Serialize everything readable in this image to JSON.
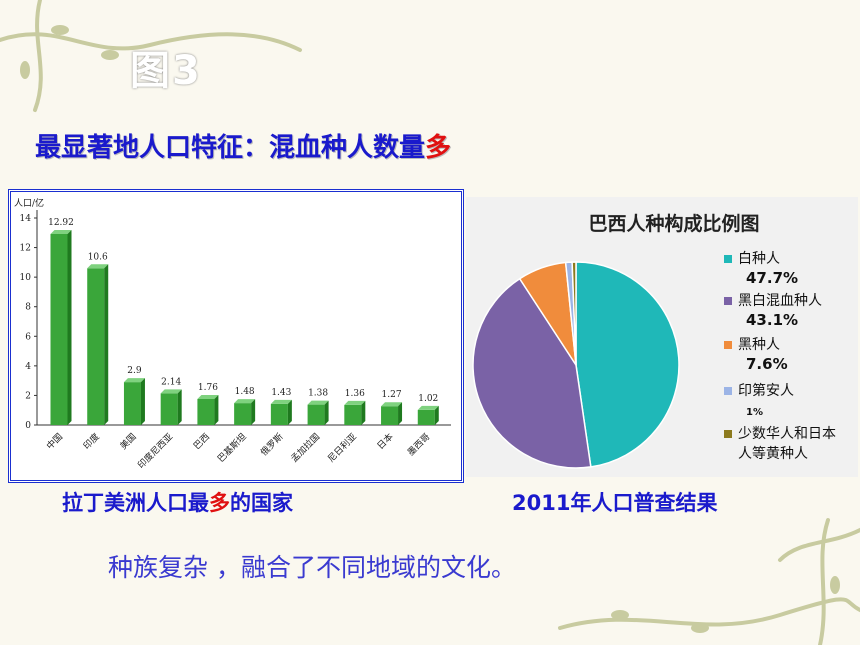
{
  "slide": {
    "title": "图3",
    "subtitle_main": "最显著地人口特征：混血种人数量",
    "subtitle_em": "多",
    "caption_left_a": "拉丁美洲人口最",
    "caption_left_em": "多",
    "caption_left_b": "的国家",
    "caption_right": "2011年人口普查结果",
    "bottom_text": "种族复杂 ，融合了不同地域的文化。"
  },
  "colors": {
    "bar": "#3aa63a",
    "frame": "#1a2fd0",
    "text_blue": "#1a1acc",
    "accent_red": "#e01010",
    "vine": "#c8cba0"
  },
  "chart_data": [
    {
      "type": "bar",
      "ylabel": "人口/亿",
      "ylim": [
        0,
        14
      ],
      "yticks": [
        0,
        2,
        4,
        6,
        8,
        10,
        12,
        14
      ],
      "categories": [
        "中国",
        "印度",
        "美国",
        "印度尼西亚",
        "巴西",
        "巴基斯坦",
        "俄罗斯",
        "孟加拉国",
        "尼日利亚",
        "日本",
        "墨西哥"
      ],
      "values": [
        12.92,
        10.6,
        2.9,
        2.14,
        1.76,
        1.48,
        1.43,
        1.38,
        1.36,
        1.27,
        1.02
      ],
      "value_labels": [
        "12.92",
        "10.6",
        "2.9",
        "2.14",
        "1.76",
        "1.48",
        "1.43",
        "1.38",
        "1.36",
        "1.27",
        "1.02"
      ]
    },
    {
      "type": "pie",
      "title": "巴西人种构成比例图",
      "slices": [
        {
          "name": "白种人",
          "label": "47.7%",
          "value": 47.7,
          "color": "#1fb8b8"
        },
        {
          "name": "黑白混血种人",
          "label": "43.1%",
          "value": 43.1,
          "color": "#7a62a6"
        },
        {
          "name": "黑种人",
          "label": "7.6%",
          "value": 7.6,
          "color": "#f08c3c"
        },
        {
          "name": "印第安人",
          "label": "1%",
          "value": 1.0,
          "color": "#9cb4e6"
        },
        {
          "name": "少数华人和日本人等黄种人",
          "label": "",
          "value": 0.6,
          "color": "#8c7a1e"
        }
      ],
      "legend_position": "right"
    }
  ]
}
